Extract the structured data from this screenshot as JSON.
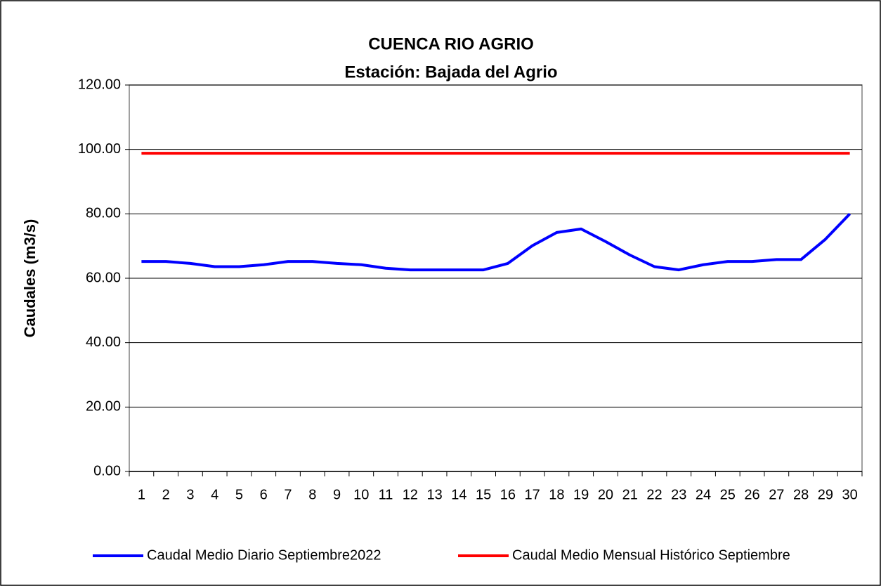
{
  "chart_data": {
    "type": "line",
    "title": "CUENCA RIO AGRIO",
    "subtitle": "Estación: Bajada del Agrio",
    "y_label": "Caudales (m3/s)",
    "categories": [
      "1",
      "2",
      "3",
      "4",
      "5",
      "6",
      "7",
      "8",
      "9",
      "10",
      "11",
      "12",
      "13",
      "14",
      "15",
      "16",
      "17",
      "18",
      "19",
      "20",
      "21",
      "22",
      "23",
      "24",
      "25",
      "26",
      "27",
      "28",
      "29",
      "30"
    ],
    "series": [
      {
        "name": "Caudal Medio Diario Septiembre2022",
        "color": "#0000ff",
        "values": [
          65.2,
          65.2,
          64.6,
          63.6,
          63.6,
          64.2,
          65.2,
          65.2,
          64.6,
          64.2,
          63.1,
          62.6,
          62.6,
          62.6,
          62.6,
          64.6,
          70.1,
          74.2,
          75.3,
          71.4,
          67.2,
          63.6,
          62.6,
          64.2,
          65.2,
          65.2,
          65.8,
          65.8,
          72.1,
          80.0
        ]
      },
      {
        "name": "Caudal Medio Mensual Histórico Septiembre",
        "color": "#ff0000",
        "values": [
          98.8,
          98.8,
          98.8,
          98.8,
          98.8,
          98.8,
          98.8,
          98.8,
          98.8,
          98.8,
          98.8,
          98.8,
          98.8,
          98.8,
          98.8,
          98.8,
          98.8,
          98.8,
          98.8,
          98.8,
          98.8,
          98.8,
          98.8,
          98.8,
          98.8,
          98.8,
          98.8,
          98.8,
          98.8,
          98.8
        ]
      }
    ],
    "ylim": [
      0,
      120
    ],
    "yticks": [
      {
        "value": 0,
        "label": "0.00"
      },
      {
        "value": 20,
        "label": "20.00"
      },
      {
        "value": 40,
        "label": "40.00"
      },
      {
        "value": 60,
        "label": "60.00"
      },
      {
        "value": 80,
        "label": "80.00"
      },
      {
        "value": 100,
        "label": "100.00"
      },
      {
        "value": 120,
        "label": "120.00"
      }
    ],
    "grid": true,
    "legend": "bottom"
  }
}
